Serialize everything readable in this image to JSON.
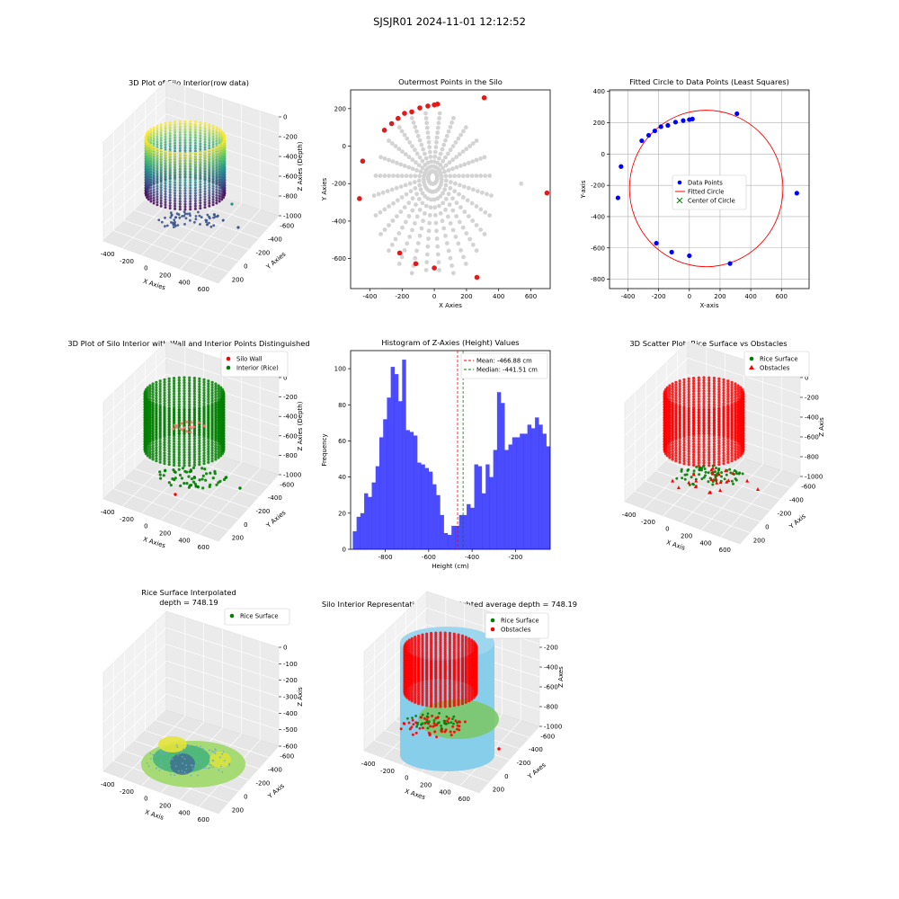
{
  "figure": {
    "title": "SJSJR01 2024-11-01 12:12:52"
  },
  "chart_data": [
    {
      "id": "p1",
      "type": "scatter",
      "projection": "3d",
      "title": "3D Plot of Silo Interior(row data)",
      "xlabel": "X Axies",
      "ylabel": "Y Axies",
      "zlabel": "Z Axies (Depth)",
      "xticks": [
        "-400",
        "-200",
        "0",
        "200",
        "400",
        "600"
      ],
      "yticks": [
        "200",
        "0",
        "-200",
        "-400",
        "-600"
      ],
      "zticks": [
        "0",
        "-200",
        "-400",
        "-600",
        "-800",
        "-1000"
      ],
      "colormap": "viridis",
      "series": []
    },
    {
      "id": "p2",
      "type": "scatter",
      "title": "Outermost Points in the Silo",
      "xlabel": "X Axies",
      "ylabel": "Y Axies",
      "xlim": [
        -520,
        720
      ],
      "ylim": [
        -760,
        300
      ],
      "xticks": [
        "-400",
        "-200",
        "0",
        "200",
        "400",
        "600"
      ],
      "yticks": [
        "200",
        "0",
        "-200",
        "-400",
        "-600"
      ],
      "series": [
        {
          "role": "outermost",
          "color": "#e31a1c",
          "points": [
            [
              -465,
              -280
            ],
            [
              -445,
              -80
            ],
            [
              -310,
              85
            ],
            [
              -265,
              120
            ],
            [
              -225,
              148
            ],
            [
              -185,
              175
            ],
            [
              -140,
              183
            ],
            [
              -90,
              204
            ],
            [
              -40,
              214
            ],
            [
              0,
              220
            ],
            [
              20,
              224
            ],
            [
              310,
              258
            ],
            [
              700,
              -250
            ],
            [
              -215,
              -570
            ],
            [
              -115,
              -627
            ],
            [
              0,
              -650
            ],
            [
              265,
              -700
            ]
          ]
        }
      ]
    },
    {
      "id": "p3",
      "type": "scatter",
      "title": "Fitted Circle to Data Points (Least Squares)",
      "xlabel": "X-axis",
      "ylabel": "Y-axis",
      "xlim": [
        -520,
        780
      ],
      "ylim": [
        -860,
        410
      ],
      "xticks": [
        "-400",
        "-200",
        "0",
        "200",
        "400",
        "600"
      ],
      "yticks": [
        "400",
        "200",
        "0",
        "-200",
        "-400",
        "-600",
        "-800"
      ],
      "legend": {
        "position": "center",
        "entries": [
          "Data Points",
          "Fitted Circle",
          "Center of Circle"
        ]
      },
      "points": [
        [
          -465,
          -280
        ],
        [
          -445,
          -80
        ],
        [
          -310,
          85
        ],
        [
          -265,
          120
        ],
        [
          -225,
          148
        ],
        [
          -185,
          175
        ],
        [
          -140,
          183
        ],
        [
          -90,
          204
        ],
        [
          -40,
          214
        ],
        [
          0,
          220
        ],
        [
          20,
          224
        ],
        [
          310,
          258
        ],
        [
          700,
          -250
        ],
        [
          -215,
          -570
        ],
        [
          -115,
          -627
        ],
        [
          0,
          -650
        ],
        [
          265,
          -700
        ]
      ],
      "circle": {
        "cx": 110,
        "cy": -220,
        "r": 500
      },
      "point_color": "#0000ff",
      "circle_color": "#ff0000",
      "center_color": "#008000"
    },
    {
      "id": "p4",
      "type": "scatter",
      "projection": "3d",
      "title": "3D Plot of Silo Interior with Wall and Interior Points Distinguished",
      "xlabel": "X Axies",
      "ylabel": "Y Axies",
      "zlabel": "Z Axies (Depth)",
      "xticks": [
        "-400",
        "-200",
        "0",
        "200",
        "400",
        "600"
      ],
      "yticks": [
        "200",
        "0",
        "-200",
        "-400",
        "-600"
      ],
      "zticks": [
        "0",
        "-200",
        "-400",
        "-600",
        "-800",
        "-1000"
      ],
      "legend": {
        "position": "top-right",
        "entries": [
          {
            "label": "Silo Wall",
            "color": "#ff0000",
            "marker": "circle"
          },
          {
            "label": "Interior (Rice)",
            "color": "#008000",
            "marker": "circle"
          }
        ]
      },
      "series": []
    },
    {
      "id": "p5",
      "type": "bar",
      "title": "Histogram of Z-Axies (Height) Values",
      "xlabel": "Height (cm)",
      "ylabel": "Frequency",
      "xlim": [
        -960,
        -40
      ],
      "ylim": [
        0,
        110
      ],
      "xticks": [
        "-800",
        "-600",
        "-400",
        "-200"
      ],
      "yticks": [
        "0",
        "20",
        "40",
        "60",
        "80",
        "100"
      ],
      "bin_start": -950,
      "bin_width": 17.5,
      "values": [
        10,
        18,
        20,
        31,
        29,
        37,
        46,
        62,
        72,
        84,
        101,
        97,
        82,
        105,
        66,
        65,
        63,
        48,
        47,
        45,
        43,
        36,
        30,
        19,
        9,
        8,
        13,
        13,
        19,
        19,
        25,
        23,
        47,
        46,
        31,
        47,
        40,
        55,
        87,
        81,
        55,
        58,
        62,
        62,
        64,
        64,
        69,
        67,
        73,
        69,
        64,
        57
      ],
      "color": "#0000ff",
      "mean": -466.88,
      "median": -441.51,
      "legend": {
        "position": "top-right",
        "entries": [
          {
            "label": "Mean: -466.88 cm",
            "color": "#ff0000"
          },
          {
            "label": "Median: -441.51 cm",
            "color": "#008000"
          }
        ]
      }
    },
    {
      "id": "p6",
      "type": "scatter",
      "projection": "3d",
      "title": "3D Scatter Plot: Rice Surface vs Obstacles",
      "xlabel": "X Axis",
      "ylabel": "Y Axis",
      "zlabel": "Z Axis",
      "xticks": [
        "-400",
        "-200",
        "0",
        "200",
        "400",
        "600"
      ],
      "yticks": [
        "200",
        "0",
        "-200",
        "-400",
        "-600"
      ],
      "zticks": [
        "0",
        "-200",
        "-400",
        "-600",
        "-800",
        "-1000"
      ],
      "legend": {
        "position": "top-right",
        "entries": [
          {
            "label": "Rice Surface",
            "color": "#008000",
            "marker": "circle"
          },
          {
            "label": "Obstacles",
            "color": "#ff0000",
            "marker": "triangle"
          }
        ]
      },
      "series": []
    },
    {
      "id": "p7",
      "type": "surface",
      "projection": "3d",
      "title": "Rice Surface Interpolated",
      "subtitle": "depth = 748.19",
      "xlabel": "X Axis",
      "ylabel": "Y Axis",
      "zlabel": "Z Axis",
      "xticks": [
        "-400",
        "-200",
        "0",
        "200",
        "400",
        "600"
      ],
      "yticks": [
        "200",
        "0",
        "-200",
        "-400",
        "-600"
      ],
      "zticks": [
        "0",
        "-100",
        "-200",
        "-300",
        "-400",
        "-500",
        "-600"
      ],
      "legend": {
        "position": "top-right",
        "entries": [
          {
            "label": "Rice Surface",
            "color": "#008000",
            "marker": "circle"
          }
        ]
      },
      "series": []
    },
    {
      "id": "p8",
      "type": "scatter",
      "projection": "3d",
      "title": "Silo Interior Representation using weighted average depth = 748.19",
      "xlabel": "X Axes",
      "ylabel": "Y Axes",
      "zlabel": "Z Axes",
      "xticks": [
        "-400",
        "-200",
        "0",
        "200",
        "400",
        "600"
      ],
      "yticks": [
        "200",
        "0",
        "-200",
        "-400",
        "-600"
      ],
      "zticks": [
        "0",
        "-200",
        "-400",
        "-600",
        "-800",
        "-1000"
      ],
      "legend": {
        "position": "top",
        "entries": [
          {
            "label": "Rice Surface",
            "color": "#008000",
            "marker": "circle"
          },
          {
            "label": "Obstacles",
            "color": "#ff0000",
            "marker": "circle"
          }
        ]
      },
      "series": []
    }
  ]
}
